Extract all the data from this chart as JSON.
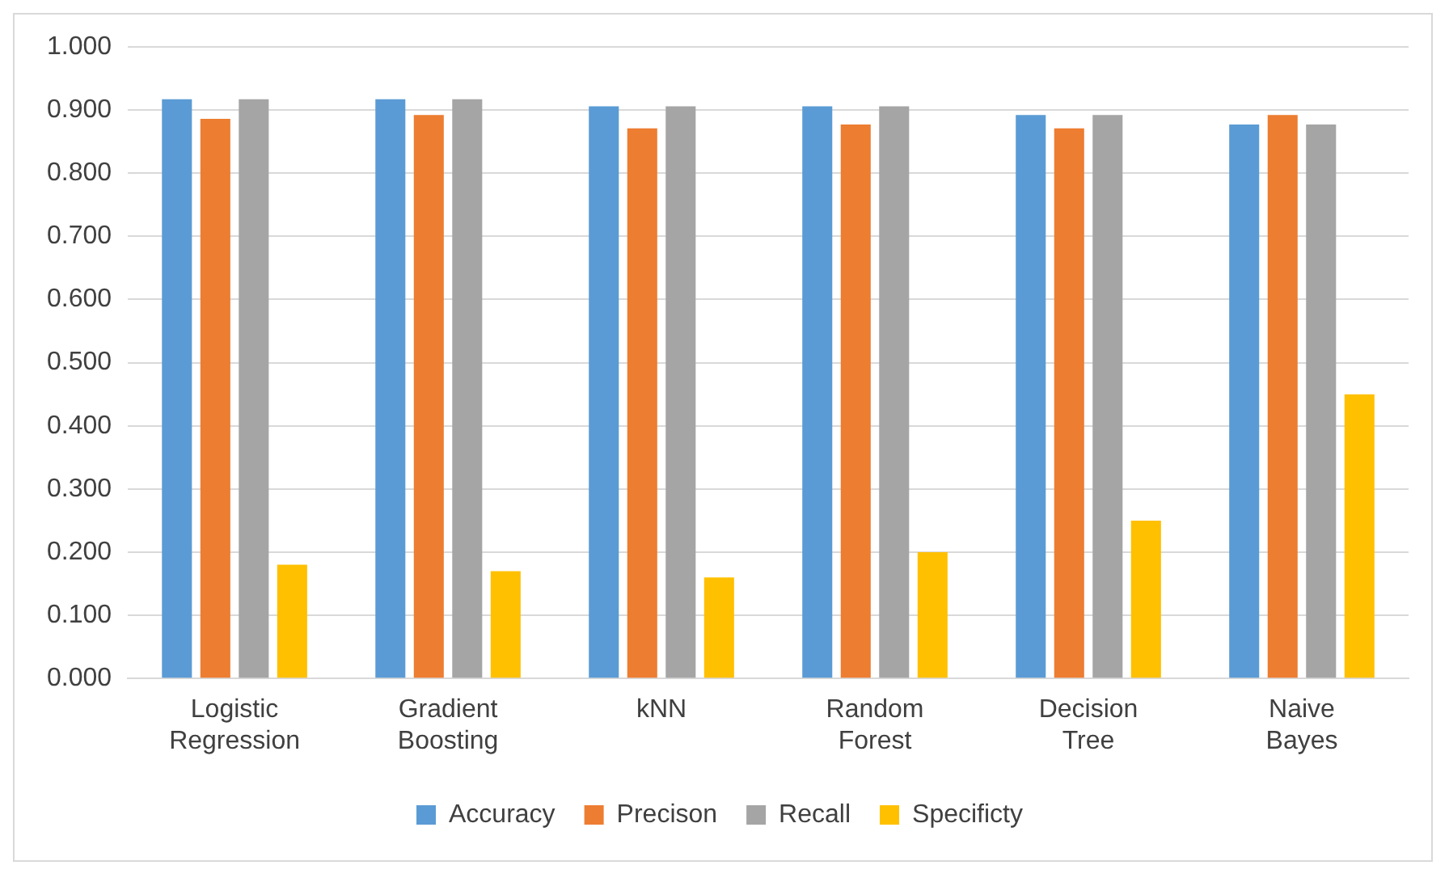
{
  "chart_data": {
    "type": "bar",
    "categories": [
      "Logistic Regression",
      "Gradient Boosting",
      "kNN",
      "Random Forest",
      "Decision Tree",
      "Naive Bayes"
    ],
    "series": [
      {
        "name": "Accuracy",
        "color": "#5b9bd5",
        "values": [
          0.917,
          0.917,
          0.906,
          0.906,
          0.892,
          0.877
        ]
      },
      {
        "name": "Precison",
        "color": "#ed7d31",
        "values": [
          0.886,
          0.892,
          0.871,
          0.877,
          0.871,
          0.892
        ]
      },
      {
        "name": "Recall",
        "color": "#a5a5a5",
        "values": [
          0.917,
          0.917,
          0.906,
          0.906,
          0.892,
          0.877
        ]
      },
      {
        "name": "Specificty",
        "color": "#ffc000",
        "values": [
          0.18,
          0.17,
          0.16,
          0.2,
          0.25,
          0.45
        ]
      }
    ],
    "ylim": [
      0,
      1
    ],
    "yticks": [
      {
        "value": 0,
        "label": "0.000"
      },
      {
        "value": 0.1,
        "label": "0.100"
      },
      {
        "value": 0.2,
        "label": "0.200"
      },
      {
        "value": 0.3,
        "label": "0.300"
      },
      {
        "value": 0.4,
        "label": "0.400"
      },
      {
        "value": 0.5,
        "label": "0.500"
      },
      {
        "value": 0.6,
        "label": "0.600"
      },
      {
        "value": 0.7,
        "label": "0.700"
      },
      {
        "value": 0.8,
        "label": "0.800"
      },
      {
        "value": 0.9,
        "label": "0.900"
      },
      {
        "value": 1,
        "label": "1.000"
      }
    ],
    "grid": "y",
    "legend": "bottom"
  }
}
